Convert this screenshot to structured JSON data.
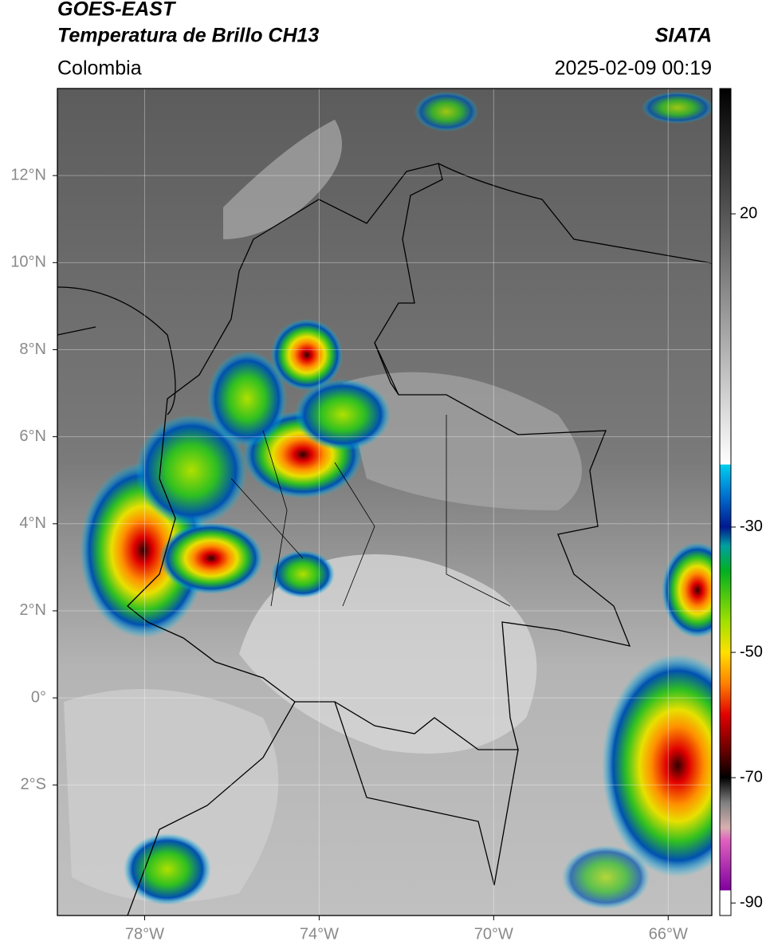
{
  "header": {
    "title": "GOES-EAST",
    "subtitle": "Temperatura de Brillo CH13",
    "source": "SIATA",
    "region": "Colombia",
    "datetime": "2025-02-09 00:19"
  },
  "map": {
    "lonlim": [
      -80,
      -65
    ],
    "latlim": [
      -5,
      14
    ],
    "grid": true,
    "lonticks": [
      {
        "value": -78,
        "label": "78°W"
      },
      {
        "value": -74,
        "label": "74°W"
      },
      {
        "value": -70,
        "label": "70°W"
      },
      {
        "value": -66,
        "label": "66°W"
      }
    ],
    "latticks": [
      {
        "value": 12,
        "label": "12°N"
      },
      {
        "value": 10,
        "label": "10°N"
      },
      {
        "value": 8,
        "label": "8°N"
      },
      {
        "value": 6,
        "label": "6°N"
      },
      {
        "value": 4,
        "label": "4°N"
      },
      {
        "value": 2,
        "label": "2°N"
      },
      {
        "value": 0,
        "label": "0°"
      },
      {
        "value": -2,
        "label": "2°S"
      }
    ]
  },
  "colorbar": {
    "lim": [
      -92,
      40
    ],
    "ticks": [
      20,
      -30,
      -50,
      -70,
      -90
    ],
    "colormap": [
      [
        40,
        "#000000"
      ],
      [
        -20,
        "#ffffff"
      ],
      [
        -20,
        "#00d0f0"
      ],
      [
        -25,
        "#0070d0"
      ],
      [
        -30,
        "#001890"
      ],
      [
        -33,
        "#00a0a0"
      ],
      [
        -37,
        "#00b020"
      ],
      [
        -45,
        "#a0e000"
      ],
      [
        -50,
        "#ffe000"
      ],
      [
        -55,
        "#ff8000"
      ],
      [
        -60,
        "#e00000"
      ],
      [
        -66,
        "#600000"
      ],
      [
        -70,
        "#000000"
      ],
      [
        -74,
        "#808080"
      ],
      [
        -78,
        "#d8b0b0"
      ],
      [
        -80,
        "#e060c0"
      ],
      [
        -88,
        "#8000a0"
      ],
      [
        -88,
        "#ffffff"
      ],
      [
        -92,
        "#ffffff"
      ]
    ]
  }
}
